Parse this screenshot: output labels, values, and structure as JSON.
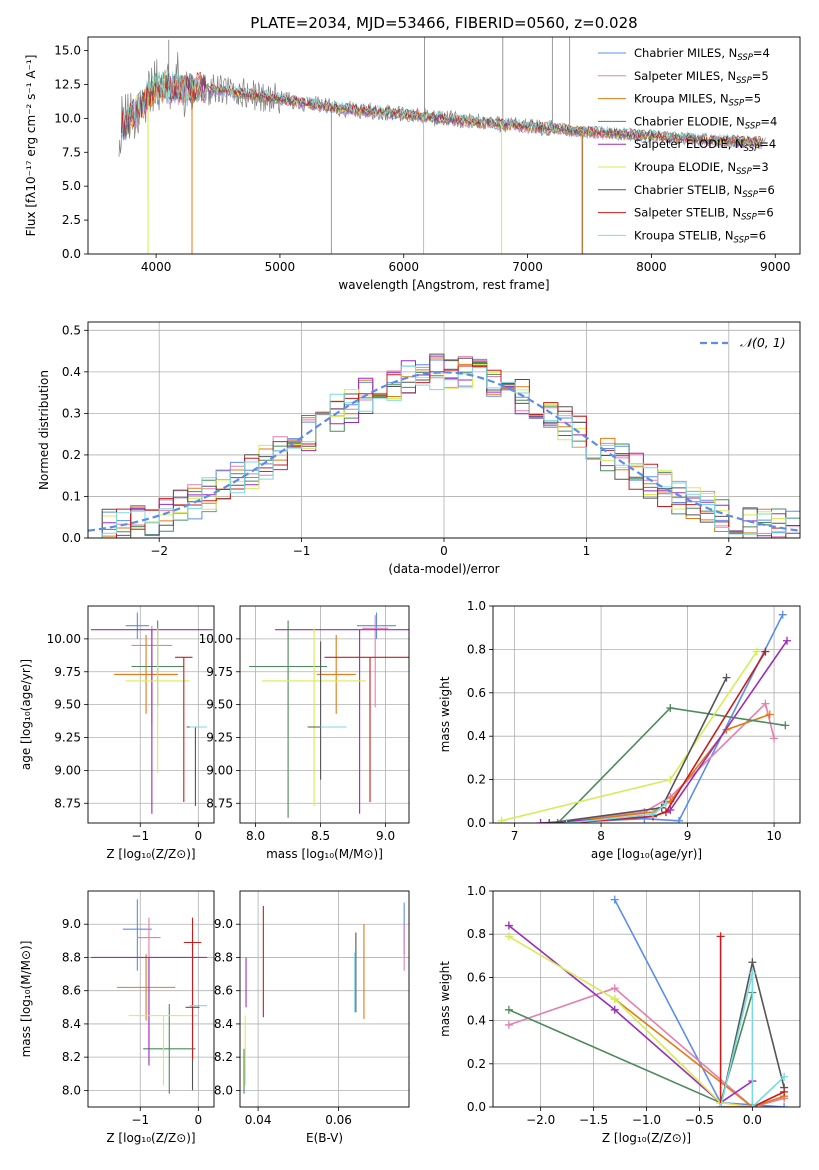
{
  "colors": {
    "chabrier_miles": "#5b8def",
    "salpeter_miles": "#e67eb0",
    "kroupa_miles": "#e07b16",
    "chabrier_elodie": "#4c8a5a",
    "salpeter_elodie": "#9b2bb8",
    "kroupa_elodie": "#d6ec54",
    "chabrier_stelib": "#555555",
    "salpeter_stelib": "#c81d1d",
    "kroupa_stelib": "#7ad9e0",
    "observed": "#808080",
    "normal": "#5b8def",
    "grid": "#b0b0b0"
  },
  "chart_data": [
    {
      "id": "spectrum",
      "type": "line",
      "title": "PLATE=2034, MJD=53466, FIBERID=0560, z=0.028",
      "xlabel": "wavelength [Angstrom, rest frame]",
      "ylabel": "Flux [fλ10⁻¹⁷ erg cm⁻² s⁻¹ A⁻¹]",
      "xlim": [
        3450,
        9200
      ],
      "ylim": [
        0,
        16
      ],
      "xticks": [
        4000,
        5000,
        6000,
        7000,
        8000,
        9000
      ],
      "yticks": [
        0.0,
        2.5,
        5.0,
        7.5,
        10.0,
        12.5,
        15.0
      ],
      "grid": false,
      "legend_position": "top-right",
      "legend": [
        {
          "label": "Chabrier MILES, N",
          "sub": "SSP",
          "tail": "=4",
          "color_key": "chabrier_miles"
        },
        {
          "label": "Salpeter MILES, N",
          "sub": "SSP",
          "tail": "=5",
          "color_key": "salpeter_miles"
        },
        {
          "label": "Kroupa MILES, N",
          "sub": "SSP",
          "tail": "=5",
          "color_key": "kroupa_miles"
        },
        {
          "label": "Chabrier ELODIE, N",
          "sub": "SSP",
          "tail": "=4",
          "color_key": "chabrier_elodie"
        },
        {
          "label": "Salpeter ELODIE, N",
          "sub": "SSP",
          "tail": "=4",
          "color_key": "salpeter_elodie"
        },
        {
          "label": "Kroupa ELODIE, N",
          "sub": "SSP",
          "tail": "=3",
          "color_key": "kroupa_elodie"
        },
        {
          "label": "Chabrier STELIB, N",
          "sub": "SSP",
          "tail": "=6",
          "color_key": "chabrier_stelib"
        },
        {
          "label": "Salpeter STELIB, N",
          "sub": "SSP",
          "tail": "=6",
          "color_key": "salpeter_stelib"
        },
        {
          "label": "Kroupa STELIB, N",
          "sub": "SSP",
          "tail": "=6",
          "color_key": "kroupa_stelib"
        }
      ],
      "model_trend": {
        "x": [
          3700,
          4000,
          4500,
          5000,
          5500,
          6000,
          6500,
          7000,
          7500,
          8000,
          8500,
          8900
        ],
        "y": [
          9.0,
          12.3,
          12.1,
          11.4,
          10.7,
          10.3,
          9.8,
          9.4,
          9.0,
          8.7,
          8.4,
          8.2
        ]
      },
      "observed_spikes": [
        {
          "x": 3935,
          "y": 4.3
        },
        {
          "x": 4102,
          "y": 15.8
        },
        {
          "x": 5415,
          "y": 0.0
        },
        {
          "x": 6168,
          "y": 16.0
        },
        {
          "x": 6800,
          "y": 16.0
        },
        {
          "x": 7200,
          "y": 16.0
        },
        {
          "x": 7445,
          "y": 0.0
        },
        {
          "x": 7340,
          "y": 16.0
        }
      ],
      "model_dips": [
        {
          "x": 3935,
          "y": 0.0,
          "color_key": "kroupa_elodie"
        },
        {
          "x": 4290,
          "y": 0.0,
          "color_key": "kroupa_miles"
        },
        {
          "x": 6160,
          "y": 0.0,
          "color_key": "kroupa_stelib"
        },
        {
          "x": 6790,
          "y": 0.0,
          "color_key": "kroupa_elodie"
        },
        {
          "x": 7440,
          "y": 0.0,
          "color_key": "kroupa_miles"
        }
      ]
    },
    {
      "id": "residuals",
      "type": "line",
      "xlabel": "(data-model)/error",
      "ylabel": "Normed distribution",
      "xlim": [
        -2.5,
        2.5
      ],
      "ylim": [
        0,
        0.52
      ],
      "xticks": [
        -2,
        -1,
        0,
        1,
        2
      ],
      "yticks": [
        0.0,
        0.1,
        0.2,
        0.3,
        0.4,
        0.5
      ],
      "grid": true,
      "legend_position": "top-right",
      "legend": [
        {
          "label": "𝒩(0, 1)",
          "color_key": "normal",
          "dashed": true
        }
      ],
      "bin_width": 0.1,
      "bin_start": -2.5
    },
    {
      "id": "age_vs_Z",
      "type": "scatter",
      "xlabel": "Z [log₁₀(Z/Z⊙)]",
      "ylabel": "age  [log₁₀(age/yr)]",
      "xlim": [
        -1.9,
        0.27
      ],
      "ylim": [
        8.6,
        10.25
      ],
      "xticks": [
        -1,
        0
      ],
      "yticks": [
        8.75,
        9.0,
        9.25,
        9.5,
        9.75,
        10.0
      ],
      "grid": true,
      "points": [
        {
          "x": -1.05,
          "y": 10.1,
          "xerr": 0.2,
          "yerr": [
            0.1,
            0.1
          ],
          "color_key": "chabrier_miles"
        },
        {
          "x": -0.8,
          "y": 9.95,
          "xerr": 0.35,
          "yerr": [
            0.6,
            0.15
          ],
          "color_key": "salpeter_miles"
        },
        {
          "x": -0.9,
          "y": 9.73,
          "xerr": 0.55,
          "yerr": [
            0.3,
            0.3
          ],
          "color_key": "kroupa_miles"
        },
        {
          "x": -0.7,
          "y": 9.79,
          "xerr": 0.45,
          "yerr": [
            0.3,
            0.35
          ],
          "color_key": "chabrier_elodie"
        },
        {
          "x": -0.8,
          "y": 10.07,
          "xerr": 1.05,
          "yerr": [
            1.4,
            0.0
          ],
          "color_key": "salpeter_elodie"
        },
        {
          "x": -0.7,
          "y": 9.68,
          "xerr": 0.55,
          "yerr": [
            0.7,
            0.4
          ],
          "color_key": "kroupa_elodie"
        },
        {
          "x": -0.05,
          "y": 9.33,
          "xerr": 0.15,
          "yerr": [
            0.6,
            0.0
          ],
          "color_key": "chabrier_stelib"
        },
        {
          "x": -0.25,
          "y": 9.86,
          "xerr": 0.15,
          "yerr": [
            1.1,
            0.0
          ],
          "color_key": "salpeter_stelib"
        },
        {
          "x": 0.0,
          "y": 9.33,
          "xerr": 0.15,
          "yerr": [
            0.0,
            0.0
          ],
          "color_key": "kroupa_stelib"
        }
      ]
    },
    {
      "id": "age_vs_mass",
      "type": "scatter",
      "xlabel": "mass [log₁₀(M/M⊙)]",
      "ylabel": "",
      "xlim": [
        7.88,
        9.18
      ],
      "ylim": [
        8.6,
        10.25
      ],
      "xticks": [
        8.0,
        8.5,
        9.0
      ],
      "yticks": [
        8.75,
        9.0,
        9.25,
        9.5,
        9.75,
        10.0
      ],
      "grid": true,
      "points": [
        {
          "x": 8.93,
          "y": 10.1,
          "xerr": 0.15,
          "yerr": [
            0.1,
            0.1
          ],
          "color_key": "chabrier_miles"
        },
        {
          "x": 8.92,
          "y": 10.08,
          "xerr": 0.1,
          "yerr": [
            0.6,
            0.1
          ],
          "color_key": "salpeter_miles"
        },
        {
          "x": 8.62,
          "y": 9.73,
          "xerr": 0.15,
          "yerr": [
            0.3,
            0.3
          ],
          "color_key": "kroupa_miles"
        },
        {
          "x": 8.25,
          "y": 9.79,
          "xerr": 0.3,
          "yerr": [
            1.15,
            0.35
          ],
          "color_key": "chabrier_elodie"
        },
        {
          "x": 8.8,
          "y": 10.07,
          "xerr": 0.65,
          "yerr": [
            1.4,
            0.0
          ],
          "color_key": "salpeter_elodie"
        },
        {
          "x": 8.45,
          "y": 9.68,
          "xerr": 0.4,
          "yerr": [
            0.95,
            0.4
          ],
          "color_key": "kroupa_elodie"
        },
        {
          "x": 8.5,
          "y": 9.33,
          "xerr": 0.1,
          "yerr": [
            0.4,
            0.65
          ],
          "color_key": "chabrier_stelib"
        },
        {
          "x": 8.88,
          "y": 9.86,
          "xerr": 0.35,
          "yerr": [
            1.1,
            0.0
          ],
          "color_key": "salpeter_stelib"
        },
        {
          "x": 8.6,
          "y": 9.33,
          "xerr": 0.1,
          "yerr": [
            0.0,
            0.0
          ],
          "color_key": "kroupa_stelib"
        }
      ]
    },
    {
      "id": "mass_weight_vs_age",
      "type": "line",
      "xlabel": "age  [log₁₀(age/yr)]",
      "ylabel": "mass weight",
      "xlim": [
        6.75,
        10.3
      ],
      "ylim": [
        0,
        1.0
      ],
      "xticks": [
        7,
        8,
        9,
        10
      ],
      "yticks": [
        0.0,
        0.2,
        0.4,
        0.6,
        0.8,
        1.0
      ],
      "grid": true,
      "series": [
        {
          "color_key": "chabrier_miles",
          "x": [
            7.5,
            8.5,
            8.9,
            10.1
          ],
          "y": [
            0.0,
            0.02,
            0.01,
            0.96
          ]
        },
        {
          "color_key": "salpeter_miles",
          "x": [
            7.4,
            8.5,
            8.8,
            9.9,
            10.0
          ],
          "y": [
            0.0,
            0.05,
            0.12,
            0.55,
            0.39
          ]
        },
        {
          "color_key": "kroupa_miles",
          "x": [
            7.5,
            8.6,
            8.8,
            9.45,
            9.95
          ],
          "y": [
            0.0,
            0.05,
            0.1,
            0.43,
            0.5
          ]
        },
        {
          "color_key": "chabrier_elodie",
          "x": [
            7.5,
            8.8,
            10.13
          ],
          "y": [
            0.0,
            0.53,
            0.45
          ]
        },
        {
          "color_key": "salpeter_elodie",
          "x": [
            7.3,
            8.6,
            8.8,
            10.15
          ],
          "y": [
            0.0,
            0.03,
            0.06,
            0.84
          ]
        },
        {
          "color_key": "kroupa_elodie",
          "x": [
            6.85,
            8.8,
            9.8
          ],
          "y": [
            0.01,
            0.2,
            0.79
          ]
        },
        {
          "color_key": "chabrier_stelib",
          "x": [
            7.4,
            8.7,
            9.45
          ],
          "y": [
            0.0,
            0.07,
            0.67
          ]
        },
        {
          "color_key": "salpeter_stelib",
          "x": [
            7.6,
            8.6,
            8.75,
            9.9
          ],
          "y": [
            0.0,
            0.03,
            0.05,
            0.79
          ]
        },
        {
          "color_key": "kroupa_stelib",
          "x": [
            7.6,
            8.6,
            8.75
          ],
          "y": [
            0.0,
            0.04,
            0.09
          ]
        }
      ]
    },
    {
      "id": "mass_vs_Z",
      "type": "scatter",
      "xlabel": "Z [log₁₀(Z/Z⊙)]",
      "ylabel": "mass [log₁₀(M/M⊙)]",
      "xlim": [
        -1.9,
        0.27
      ],
      "ylim": [
        7.9,
        9.2
      ],
      "xticks": [
        -1,
        0
      ],
      "yticks": [
        8.0,
        8.2,
        8.4,
        8.6,
        8.8,
        9.0
      ],
      "grid": true,
      "points": [
        {
          "x": -1.05,
          "y": 8.97,
          "xerr": 0.25,
          "yerr": [
            0.25,
            0.18
          ],
          "color_key": "chabrier_miles"
        },
        {
          "x": -0.85,
          "y": 8.92,
          "xerr": 0.2,
          "yerr": [
            0.7,
            0.12
          ],
          "color_key": "salpeter_miles"
        },
        {
          "x": -0.9,
          "y": 8.62,
          "xerr": 0.5,
          "yerr": [
            0.2,
            0.2
          ],
          "color_key": "kroupa_miles"
        },
        {
          "x": -0.5,
          "y": 8.25,
          "xerr": 0.45,
          "yerr": [
            0.27,
            0.27
          ],
          "color_key": "chabrier_elodie"
        },
        {
          "x": -0.85,
          "y": 8.8,
          "xerr": 1.0,
          "yerr": [
            0.65,
            0.0
          ],
          "color_key": "salpeter_elodie"
        },
        {
          "x": -0.6,
          "y": 8.45,
          "xerr": 0.6,
          "yerr": [
            0.42,
            0.0
          ],
          "color_key": "kroupa_elodie"
        },
        {
          "x": -0.1,
          "y": 8.5,
          "xerr": 0.12,
          "yerr": [
            0.5,
            0.45
          ],
          "color_key": "chabrier_stelib"
        },
        {
          "x": -0.1,
          "y": 8.89,
          "xerr": 0.15,
          "yerr": [
            0.7,
            0.15
          ],
          "color_key": "salpeter_stelib"
        },
        {
          "x": 0.0,
          "y": 8.51,
          "xerr": 0.15,
          "yerr": [
            0.0,
            0.0
          ],
          "color_key": "kroupa_stelib"
        }
      ]
    },
    {
      "id": "mass_vs_ebv",
      "type": "scatter",
      "xlabel": "E(B-V)",
      "ylabel": "",
      "xlim": [
        0.0355,
        0.0775
      ],
      "ylim": [
        7.9,
        9.2
      ],
      "xticks": [
        0.04,
        0.06
      ],
      "yticks": [
        8.0,
        8.2,
        8.4,
        8.6,
        8.8,
        9.0
      ],
      "grid": true,
      "points": [
        {
          "x": 0.0763,
          "y": 8.97,
          "xerr": 0,
          "yerr": [
            0.15,
            0.16
          ],
          "color_key": "chabrier_miles"
        },
        {
          "x": 0.0763,
          "y": 8.85,
          "xerr": 0,
          "yerr": [
            0.13,
            0.15
          ],
          "color_key": "salpeter_miles"
        },
        {
          "x": 0.0663,
          "y": 8.62,
          "xerr": 0,
          "yerr": [
            0.19,
            0.38
          ],
          "color_key": "kroupa_miles"
        },
        {
          "x": 0.0365,
          "y": 8.25,
          "xerr": 0,
          "yerr": [
            0.27,
            0.0
          ],
          "color_key": "chabrier_elodie"
        },
        {
          "x": 0.037,
          "y": 8.8,
          "xerr": 0,
          "yerr": [
            0.3,
            0.0
          ],
          "color_key": "salpeter_elodie"
        },
        {
          "x": 0.0368,
          "y": 8.45,
          "xerr": 0,
          "yerr": [
            0.42,
            0.0
          ],
          "color_key": "kroupa_elodie"
        },
        {
          "x": 0.0643,
          "y": 8.72,
          "xerr": 0,
          "yerr": [
            0.25,
            0.23
          ],
          "color_key": "chabrier_stelib"
        },
        {
          "x": 0.0413,
          "y": 8.89,
          "xerr": 0,
          "yerr": [
            0.45,
            0.22
          ],
          "color_key": "salpeter_stelib"
        },
        {
          "x": 0.064,
          "y": 8.65,
          "xerr": 0,
          "yerr": [
            0.18,
            0.18
          ],
          "color_key": "kroupa_stelib"
        }
      ]
    },
    {
      "id": "mass_weight_vs_Z",
      "type": "line",
      "xlabel": "Z [log₁₀(Z/Z⊙)]",
      "ylabel": "mass weight",
      "xlim": [
        -2.45,
        0.45
      ],
      "ylim": [
        0,
        1.0
      ],
      "xticks": [
        -2.0,
        -1.5,
        -1.0,
        -0.5,
        0.0
      ],
      "yticks": [
        0.0,
        0.2,
        0.4,
        0.6,
        0.8,
        1.0
      ],
      "grid": true,
      "series": [
        {
          "color_key": "chabrier_miles",
          "x": [
            -1.3,
            -0.3,
            0.0,
            0.3
          ],
          "y": [
            0.96,
            0.02,
            0.01,
            0.0
          ]
        },
        {
          "color_key": "salpeter_miles",
          "x": [
            -2.3,
            -1.3,
            0.0,
            0.3
          ],
          "y": [
            0.38,
            0.55,
            0.0,
            0.04
          ]
        },
        {
          "color_key": "kroupa_miles",
          "x": [
            -1.3,
            0.0,
            0.3
          ],
          "y": [
            0.5,
            0.0,
            0.05
          ]
        },
        {
          "color_key": "chabrier_elodie",
          "x": [
            -2.3,
            -0.3,
            0.0
          ],
          "y": [
            0.45,
            0.02,
            0.53
          ]
        },
        {
          "color_key": "salpeter_elodie",
          "x": [
            -2.3,
            -1.3,
            -0.3,
            0.0
          ],
          "y": [
            0.84,
            0.45,
            0.02,
            0.12
          ]
        },
        {
          "color_key": "kroupa_elodie",
          "x": [
            -2.3,
            -1.3,
            -0.3,
            0.0
          ],
          "y": [
            0.79,
            0.5,
            0.02,
            0.0
          ]
        },
        {
          "color_key": "chabrier_stelib",
          "x": [
            -0.3,
            0.0,
            0.3
          ],
          "y": [
            0.0,
            0.67,
            0.09
          ]
        },
        {
          "color_key": "salpeter_stelib",
          "x": [
            -0.3,
            -0.3,
            0.0,
            0.3
          ],
          "y": [
            0.79,
            0.0,
            0.0,
            0.07
          ]
        },
        {
          "color_key": "kroupa_stelib",
          "x": [
            -0.3,
            0.0,
            0.0,
            0.3
          ],
          "y": [
            0.0,
            0.62,
            0.0,
            0.14
          ]
        }
      ]
    }
  ]
}
